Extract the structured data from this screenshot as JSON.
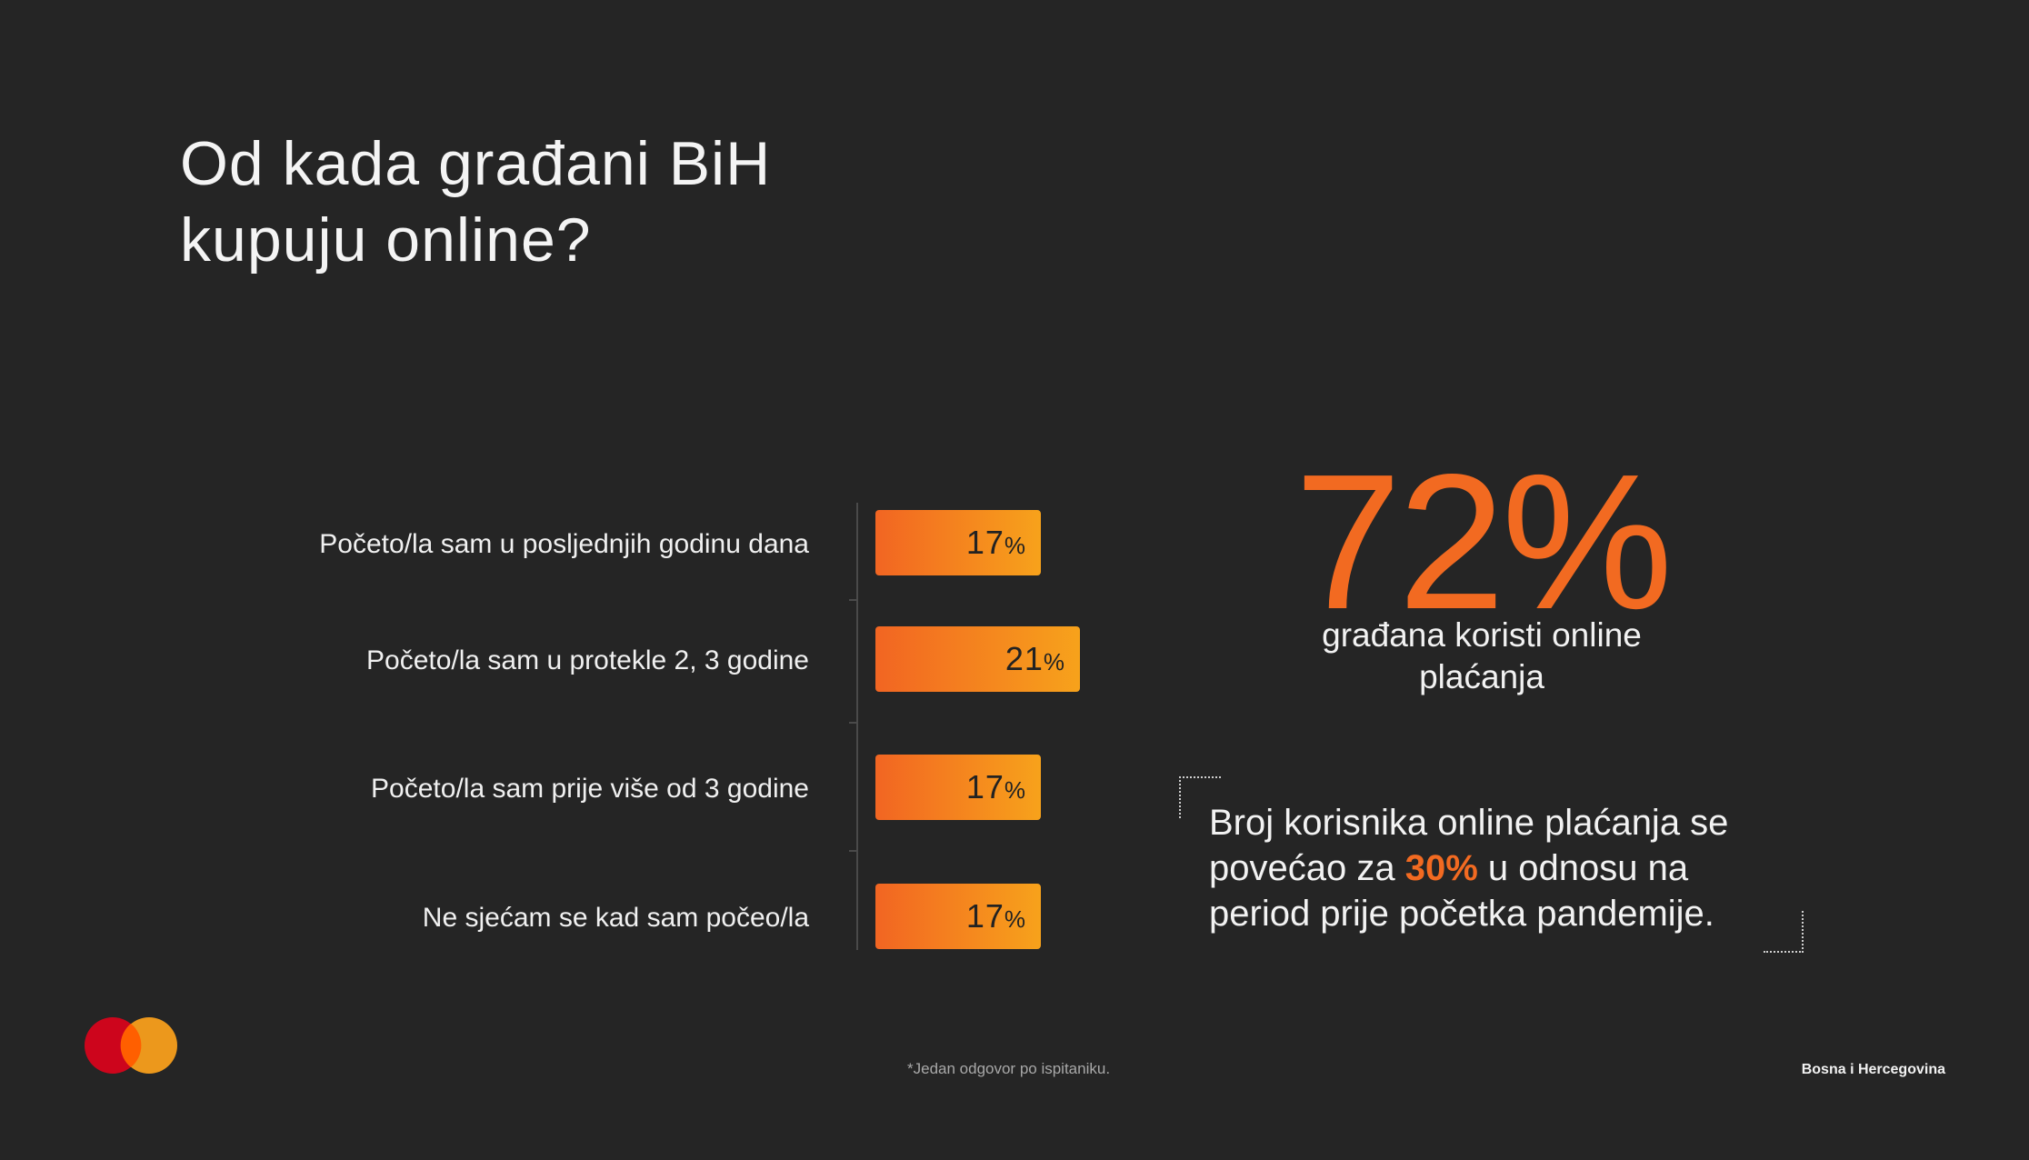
{
  "title": {
    "line1": "Od kada građani BiH",
    "line2": "kupuju online?"
  },
  "chart_data": {
    "type": "bar",
    "orientation": "horizontal",
    "categories": [
      "Početo/la sam u posljednjih godinu dana",
      "Početo/la sam u protekle 2, 3 godine",
      "Početo/la sam prije više od 3 godine",
      "Ne sjećam se kad sam počeo/la"
    ],
    "values": [
      17,
      21,
      17,
      17
    ],
    "value_suffix": "%",
    "colors": {
      "bar_start": "#f26522",
      "bar_end": "#f7a21b"
    }
  },
  "highlight": {
    "big_value": "72%",
    "big_caption_line1": "građana koristi online",
    "big_caption_line2": "plaćanja"
  },
  "callout": {
    "line1": "Broj korisnika online plaćanja se",
    "line2_before": "povećao za ",
    "line2_highlight": "30%",
    "line2_after": " u odnosu na",
    "line3": "period prije početka pandemije."
  },
  "footer": {
    "footnote": "*Jedan odgovor po ispitaniku.",
    "country": "Bosna i Hercegovina",
    "logo_icon": "mastercard-logo-icon"
  },
  "colors": {
    "background": "#252525",
    "accent": "#f26a21",
    "logo_red": "#eb001b",
    "logo_orange": "#f79e1b"
  }
}
